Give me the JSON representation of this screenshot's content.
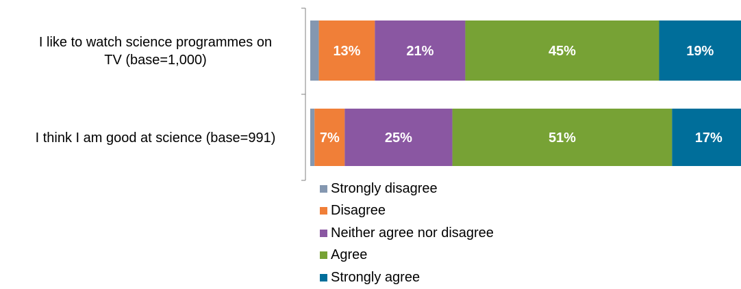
{
  "chart_data": {
    "type": "bar",
    "orientation": "horizontal",
    "stacked": true,
    "categories": [
      [
        "I like to watch science programmes on",
        "TV (base=1,000)"
      ],
      [
        "I think I am good at science (base=991)"
      ]
    ],
    "series": [
      {
        "name": "Strongly disagree",
        "color": "#8497b0",
        "values": [
          2,
          1
        ],
        "labels": [
          "",
          ""
        ]
      },
      {
        "name": "Disagree",
        "color": "#f07f38",
        "values": [
          13,
          7
        ],
        "labels": [
          "13%",
          "7%"
        ]
      },
      {
        "name": "Neither agree nor disagree",
        "color": "#8a57a2",
        "values": [
          21,
          25
        ],
        "labels": [
          "21%",
          "25%"
        ]
      },
      {
        "name": "Agree",
        "color": "#77a235",
        "values": [
          45,
          51
        ],
        "labels": [
          "45%",
          "51%"
        ]
      },
      {
        "name": "Strongly agree",
        "color": "#006e9a",
        "values": [
          19,
          17
        ],
        "labels": [
          "19%",
          "17%"
        ]
      }
    ],
    "xlim": [
      0,
      100
    ],
    "legend_position": "bottom-left",
    "grid": false
  }
}
